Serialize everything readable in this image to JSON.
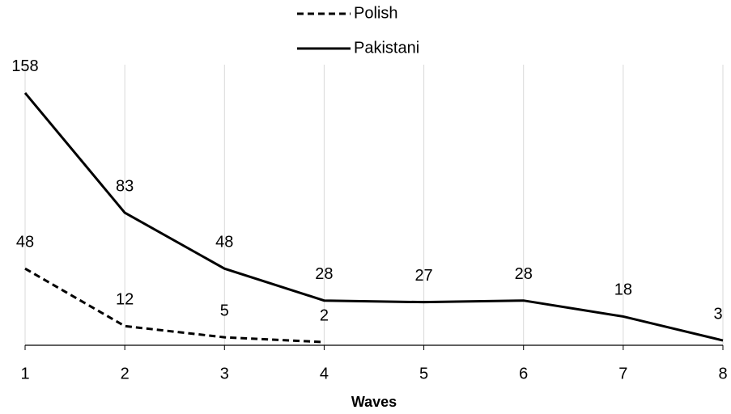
{
  "chart_data": {
    "type": "line",
    "x_label": "Waves",
    "x": [
      1,
      2,
      3,
      4,
      5,
      6,
      7,
      8
    ],
    "xlim": [
      1,
      8
    ],
    "xticks": [
      1,
      2,
      3,
      4,
      5,
      6,
      7,
      8
    ],
    "ylim": [
      0,
      160
    ],
    "grid": true,
    "series": [
      {
        "name": "Polish",
        "color": "#000000",
        "dash": true,
        "values": [
          48,
          12,
          5,
          2,
          null,
          null,
          null,
          null
        ]
      },
      {
        "name": "Pakistani",
        "color": "#000000",
        "dash": false,
        "values": [
          158,
          83,
          48,
          28,
          27,
          28,
          18,
          3
        ]
      }
    ]
  }
}
